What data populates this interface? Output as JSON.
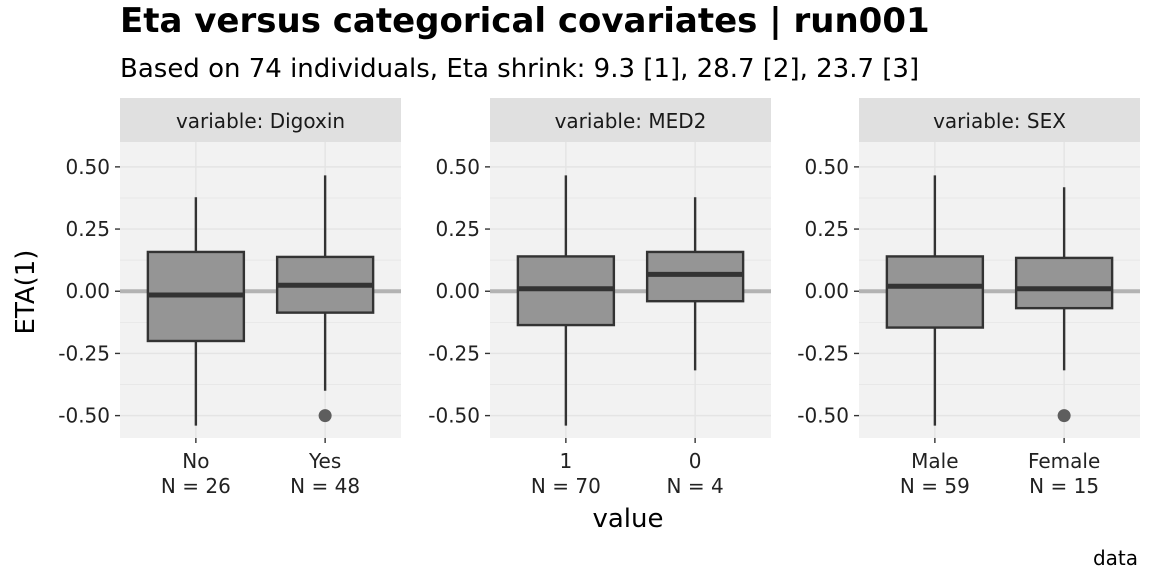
{
  "chart_data": {
    "type": "boxplot",
    "title": "Eta versus categorical covariates | run001",
    "subtitle": "Based on 74 individuals, Eta shrink: 9.3 [1], 28.7 [2], 23.7 [3]",
    "xlabel": "value",
    "ylabel": "ETA(1)",
    "caption": "data",
    "ylim": [
      -0.59,
      0.6
    ],
    "yticks": [
      "0.50",
      "0.25",
      "0.00",
      "-0.25",
      "-0.50"
    ],
    "ytick_values": [
      0.5,
      0.25,
      0.0,
      -0.25,
      -0.5
    ],
    "reference_line": 0,
    "grid": true,
    "colors": {
      "panel": "#f2f2f2",
      "strip": "#e0e0e0",
      "box_fill": "#959595",
      "box_line": "#333333",
      "outlier": "#5e5e5e",
      "reference": "#b3b3b3",
      "grid": "#e4e4e4"
    },
    "panels": [
      {
        "strip": "variable: Digoxin",
        "categories": [
          {
            "label": "No",
            "n_label": "N = 26",
            "lower": -0.54,
            "q1": -0.2,
            "median": -0.015,
            "q3": 0.158,
            "upper": 0.378,
            "outliers": []
          },
          {
            "label": "Yes",
            "n_label": "N = 48",
            "lower": -0.4,
            "q1": -0.086,
            "median": 0.024,
            "q3": 0.138,
            "upper": 0.466,
            "outliers": [
              -0.5
            ]
          }
        ]
      },
      {
        "strip": "variable: MED2",
        "categories": [
          {
            "label": "1",
            "n_label": "N = 70",
            "lower": -0.54,
            "q1": -0.136,
            "median": 0.01,
            "q3": 0.14,
            "upper": 0.466,
            "outliers": []
          },
          {
            "label": "0",
            "n_label": "N = 4",
            "lower": -0.318,
            "q1": -0.04,
            "median": 0.068,
            "q3": 0.158,
            "upper": 0.378,
            "outliers": []
          }
        ]
      },
      {
        "strip": "variable: SEX",
        "categories": [
          {
            "label": "Male",
            "n_label": "N = 59",
            "lower": -0.54,
            "q1": -0.146,
            "median": 0.02,
            "q3": 0.14,
            "upper": 0.466,
            "outliers": []
          },
          {
            "label": "Female",
            "n_label": "N = 15",
            "lower": -0.318,
            "q1": -0.068,
            "median": 0.01,
            "q3": 0.134,
            "upper": 0.418,
            "outliers": [
              -0.5
            ]
          }
        ]
      }
    ]
  }
}
